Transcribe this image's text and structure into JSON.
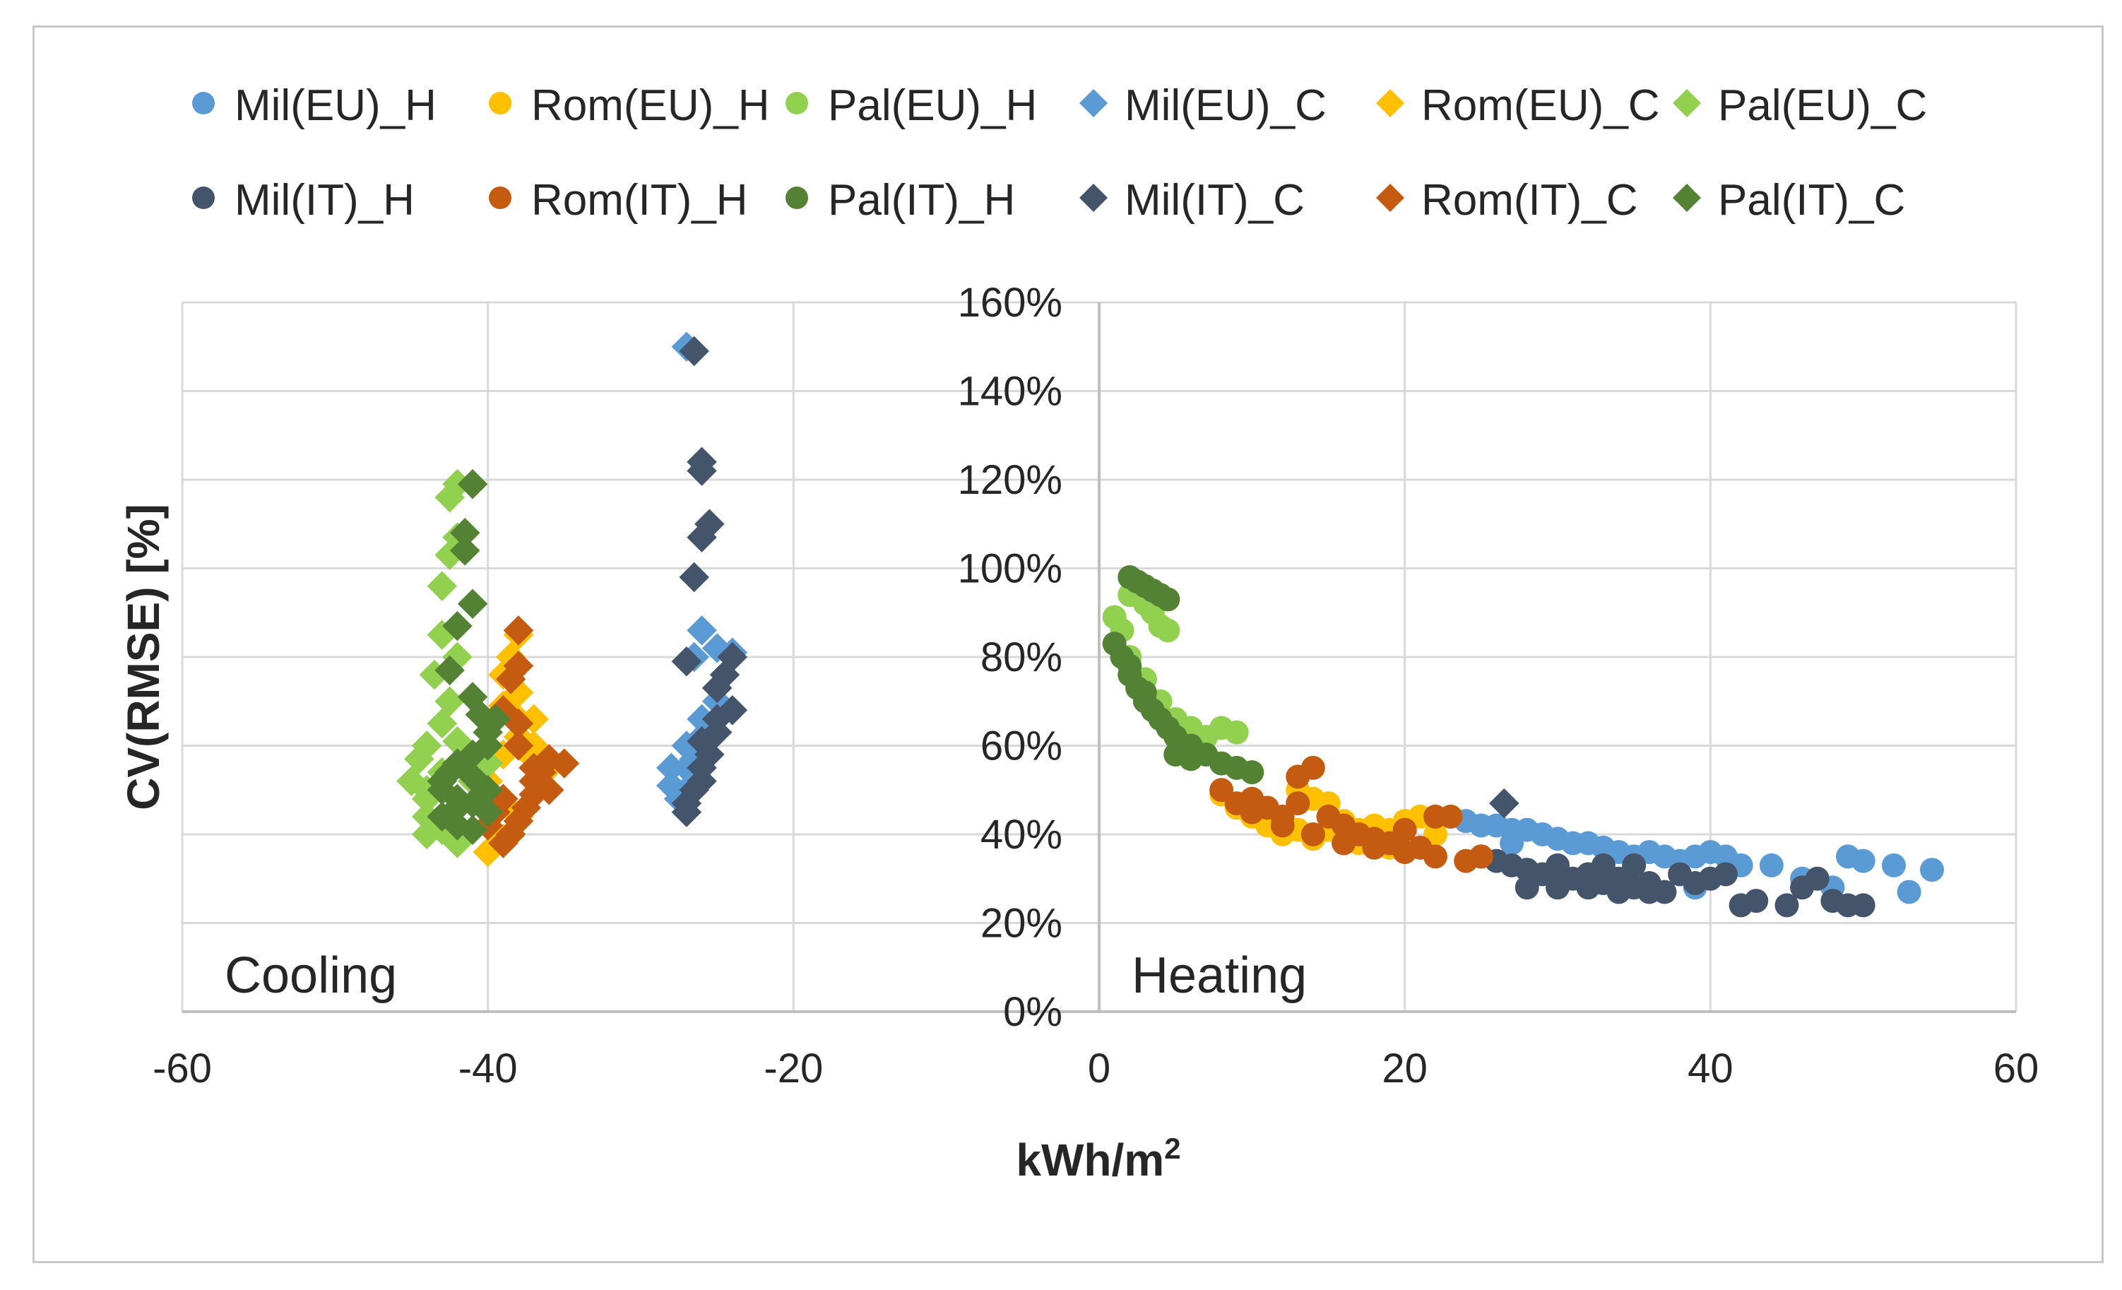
{
  "chart_data": {
    "type": "scatter",
    "title": "",
    "xlabel": "kWh/m",
    "xlabel_sup": "2",
    "ylabel": "CV(RMSE) [%]",
    "xlim": [
      -60,
      60
    ],
    "ylim": [
      0,
      160
    ],
    "x_ticks": [
      -60,
      -40,
      -20,
      0,
      20,
      40,
      60
    ],
    "y_ticks": [
      0,
      20,
      40,
      60,
      80,
      100,
      120,
      140,
      160
    ],
    "y_tick_suffix": "%",
    "grid": true,
    "legend_position": "top",
    "annotations": {
      "cooling": "Cooling",
      "heating": "Heating"
    },
    "series": [
      {
        "name": "Mil(EU)_H",
        "marker": "circle",
        "color": "#5b9bd5",
        "points": [
          [
            24,
            43
          ],
          [
            25,
            42
          ],
          [
            26,
            42
          ],
          [
            27,
            41
          ],
          [
            28,
            41
          ],
          [
            29,
            40
          ],
          [
            30,
            39
          ],
          [
            31,
            38
          ],
          [
            32,
            38
          ],
          [
            33,
            37
          ],
          [
            34,
            36
          ],
          [
            35,
            35
          ],
          [
            36,
            36
          ],
          [
            37,
            35
          ],
          [
            38,
            34
          ],
          [
            39,
            35
          ],
          [
            40,
            36
          ],
          [
            41,
            35
          ],
          [
            42,
            33
          ],
          [
            44,
            33
          ],
          [
            46,
            30
          ],
          [
            48,
            28
          ],
          [
            49,
            35
          ],
          [
            50,
            34
          ],
          [
            52,
            33
          ],
          [
            53,
            27
          ],
          [
            54.5,
            32
          ],
          [
            39,
            28
          ],
          [
            35,
            30
          ],
          [
            27,
            38
          ]
        ]
      },
      {
        "name": "Rom(EU)_H",
        "marker": "circle",
        "color": "#ffc000",
        "points": [
          [
            8,
            49
          ],
          [
            9,
            46
          ],
          [
            10,
            44
          ],
          [
            11,
            42
          ],
          [
            12,
            40
          ],
          [
            13,
            41
          ],
          [
            14,
            48
          ],
          [
            15,
            47
          ],
          [
            16,
            43
          ],
          [
            17,
            41
          ],
          [
            18,
            39
          ],
          [
            19,
            41
          ],
          [
            20,
            43
          ],
          [
            21,
            44
          ],
          [
            22,
            40
          ],
          [
            10,
            47
          ],
          [
            12,
            43
          ],
          [
            15,
            41
          ],
          [
            17,
            38
          ],
          [
            19,
            37
          ],
          [
            13,
            50
          ],
          [
            14,
            39
          ],
          [
            16,
            40
          ],
          [
            18,
            42
          ]
        ]
      },
      {
        "name": "Pal(EU)_H",
        "marker": "circle",
        "color": "#92d050",
        "points": [
          [
            1,
            89
          ],
          [
            1.5,
            86
          ],
          [
            2,
            94
          ],
          [
            2.5,
            97
          ],
          [
            3,
            92
          ],
          [
            3.5,
            90
          ],
          [
            4,
            87
          ],
          [
            4.5,
            86
          ],
          [
            2,
            80
          ],
          [
            3,
            75
          ],
          [
            4,
            70
          ],
          [
            5,
            66
          ],
          [
            6,
            64
          ],
          [
            7,
            62
          ],
          [
            8,
            64
          ],
          [
            9,
            63
          ],
          [
            6,
            58
          ],
          [
            5,
            62
          ]
        ]
      },
      {
        "name": "Mil(EU)_C",
        "marker": "diamond",
        "color": "#5b9bd5",
        "points": [
          [
            -27,
            150
          ],
          [
            -26,
            124
          ],
          [
            -26,
            86
          ],
          [
            -26.5,
            80
          ],
          [
            -25,
            82
          ],
          [
            -24,
            81
          ],
          [
            -25,
            73
          ],
          [
            -26,
            66
          ],
          [
            -27,
            60
          ],
          [
            -27,
            55
          ],
          [
            -28,
            51
          ],
          [
            -27.5,
            48
          ],
          [
            -26,
            62
          ],
          [
            -25,
            70
          ],
          [
            -26.5,
            57
          ],
          [
            -28,
            55
          ],
          [
            -27,
            50
          ]
        ]
      },
      {
        "name": "Rom(EU)_C",
        "marker": "diamond",
        "color": "#ffc000",
        "points": [
          [
            -38,
            85
          ],
          [
            -38.5,
            80
          ],
          [
            -39,
            76
          ],
          [
            -38,
            72
          ],
          [
            -37,
            66
          ],
          [
            -38,
            62
          ],
          [
            -37,
            60
          ],
          [
            -39,
            58
          ],
          [
            -40,
            52
          ],
          [
            -39,
            47
          ],
          [
            -40,
            42
          ],
          [
            -39,
            39
          ],
          [
            -40,
            36
          ],
          [
            -38,
            44
          ],
          [
            -36,
            55
          ],
          [
            -37,
            57
          ],
          [
            -39,
            69
          ],
          [
            -38,
            66
          ]
        ]
      },
      {
        "name": "Pal(EU)_C",
        "marker": "diamond",
        "color": "#92d050",
        "points": [
          [
            -42,
            119
          ],
          [
            -42.5,
            116
          ],
          [
            -42,
            107
          ],
          [
            -42.5,
            103
          ],
          [
            -43,
            96
          ],
          [
            -43,
            85
          ],
          [
            -42,
            80
          ],
          [
            -43.5,
            76
          ],
          [
            -42.5,
            70
          ],
          [
            -43,
            65
          ],
          [
            -44,
            60
          ],
          [
            -44.5,
            57
          ],
          [
            -45,
            52
          ],
          [
            -44,
            48
          ],
          [
            -44,
            44
          ],
          [
            -43,
            41
          ],
          [
            -44,
            40
          ],
          [
            -42,
            38
          ],
          [
            -41,
            52
          ],
          [
            -40,
            56
          ],
          [
            -42,
            61
          ],
          [
            -43,
            54
          ],
          [
            -44,
            50
          ]
        ]
      },
      {
        "name": "Mil(IT)_H",
        "marker": "circle",
        "color": "#44546a",
        "points": [
          [
            25,
            35
          ],
          [
            26,
            34
          ],
          [
            27,
            33
          ],
          [
            28,
            32
          ],
          [
            29,
            31
          ],
          [
            30,
            33
          ],
          [
            31,
            30
          ],
          [
            32,
            31
          ],
          [
            33,
            29
          ],
          [
            34,
            30
          ],
          [
            35,
            28
          ],
          [
            36,
            29
          ],
          [
            37,
            27
          ],
          [
            38,
            31
          ],
          [
            39,
            29
          ],
          [
            40,
            30
          ],
          [
            41,
            31
          ],
          [
            42,
            24
          ],
          [
            43,
            25
          ],
          [
            45,
            24
          ],
          [
            46,
            28
          ],
          [
            47,
            30
          ],
          [
            48,
            25
          ],
          [
            49,
            24
          ],
          [
            50,
            24
          ],
          [
            28,
            28
          ],
          [
            30,
            28
          ],
          [
            32,
            28
          ],
          [
            34,
            27
          ],
          [
            36,
            27
          ],
          [
            35,
            33
          ],
          [
            33,
            33
          ]
        ]
      },
      {
        "name": "Rom(IT)_H",
        "marker": "circle",
        "color": "#c55a11",
        "points": [
          [
            8,
            50
          ],
          [
            9,
            47
          ],
          [
            10,
            48
          ],
          [
            11,
            46
          ],
          [
            12,
            44
          ],
          [
            13,
            53
          ],
          [
            14,
            55
          ],
          [
            15,
            44
          ],
          [
            16,
            42
          ],
          [
            17,
            40
          ],
          [
            18,
            37
          ],
          [
            19,
            38
          ],
          [
            20,
            36
          ],
          [
            21,
            37
          ],
          [
            22,
            44
          ],
          [
            23,
            44
          ],
          [
            24,
            34
          ],
          [
            25,
            35
          ],
          [
            12,
            42
          ],
          [
            14,
            40
          ],
          [
            16,
            38
          ],
          [
            18,
            39
          ],
          [
            20,
            41
          ],
          [
            22,
            35
          ],
          [
            10,
            45
          ],
          [
            13,
            47
          ]
        ]
      },
      {
        "name": "Pal(IT)_H",
        "marker": "circle",
        "color": "#548235",
        "points": [
          [
            2,
            98
          ],
          [
            2.5,
            97
          ],
          [
            3,
            96
          ],
          [
            3.5,
            95
          ],
          [
            4,
            94
          ],
          [
            4.5,
            93
          ],
          [
            1,
            83
          ],
          [
            1.5,
            80
          ],
          [
            2,
            76
          ],
          [
            2.5,
            73
          ],
          [
            3,
            70
          ],
          [
            3.5,
            68
          ],
          [
            4,
            66
          ],
          [
            4.5,
            64
          ],
          [
            5,
            62
          ],
          [
            6,
            60
          ],
          [
            7,
            58
          ],
          [
            8,
            56
          ],
          [
            9,
            55
          ],
          [
            10,
            54
          ],
          [
            5,
            58
          ],
          [
            6,
            57
          ],
          [
            3,
            72
          ],
          [
            2,
            78
          ]
        ]
      },
      {
        "name": "Mil(IT)_C",
        "marker": "diamond",
        "color": "#44546a",
        "points": [
          [
            -26.5,
            149
          ],
          [
            -26,
            124
          ],
          [
            -26,
            122
          ],
          [
            -25.5,
            110
          ],
          [
            -26,
            107
          ],
          [
            -26.5,
            98
          ],
          [
            -27,
            79
          ],
          [
            -24,
            80
          ],
          [
            -24.5,
            76
          ],
          [
            -25,
            73
          ],
          [
            -24,
            68
          ],
          [
            -25,
            63
          ],
          [
            -25.5,
            58
          ],
          [
            -26,
            55
          ],
          [
            -26,
            52
          ],
          [
            -26.5,
            50
          ],
          [
            -27,
            47
          ],
          [
            -27,
            45
          ],
          [
            -26,
            61
          ],
          [
            -25,
            66
          ],
          [
            26.5,
            47
          ]
        ]
      },
      {
        "name": "Rom(IT)_C",
        "marker": "diamond",
        "color": "#c55a11",
        "points": [
          [
            -38,
            86
          ],
          [
            -38,
            78
          ],
          [
            -38.5,
            75
          ],
          [
            -39,
            68
          ],
          [
            -38,
            65
          ],
          [
            -36,
            57
          ],
          [
            -36.5,
            54
          ],
          [
            -37,
            52
          ],
          [
            -37,
            49
          ],
          [
            -37.5,
            46
          ],
          [
            -38,
            43
          ],
          [
            -38.5,
            40
          ],
          [
            -39,
            38
          ],
          [
            -40,
            42
          ],
          [
            -39.5,
            45
          ],
          [
            -39,
            48
          ],
          [
            -35,
            56
          ],
          [
            -36,
            50
          ],
          [
            -38,
            60
          ],
          [
            -37,
            55
          ]
        ]
      },
      {
        "name": "Pal(IT)_C",
        "marker": "diamond",
        "color": "#548235",
        "points": [
          [
            -41,
            119
          ],
          [
            -41.5,
            108
          ],
          [
            -41.5,
            104
          ],
          [
            -41,
            92
          ],
          [
            -42,
            87
          ],
          [
            -42.5,
            77
          ],
          [
            -41,
            71
          ],
          [
            -40.5,
            67
          ],
          [
            -40,
            60
          ],
          [
            -41,
            58
          ],
          [
            -42,
            56
          ],
          [
            -42.5,
            54
          ],
          [
            -43,
            52
          ],
          [
            -43,
            50
          ],
          [
            -42,
            48
          ],
          [
            -42,
            46
          ],
          [
            -43,
            44
          ],
          [
            -42,
            42
          ],
          [
            -41,
            41
          ],
          [
            -40,
            50
          ],
          [
            -41,
            53
          ],
          [
            -40,
            63
          ],
          [
            -39.5,
            66
          ],
          [
            -41,
            47
          ],
          [
            -40,
            45
          ]
        ]
      }
    ]
  }
}
